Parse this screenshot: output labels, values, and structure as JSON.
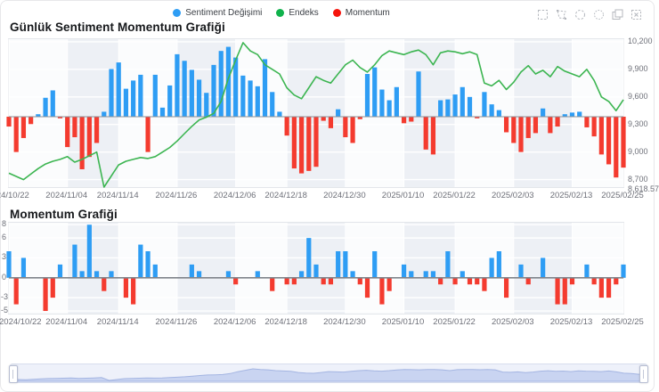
{
  "header": {
    "legend": [
      {
        "label": "Sentiment Değişimi",
        "color": "#2e9df4"
      },
      {
        "label": "Endeks",
        "color": "#10b24c"
      },
      {
        "label": "Momentum",
        "color": "#f5140c"
      }
    ],
    "toolbox_icons": [
      "brush-rect-icon",
      "brush-polygon-icon",
      "brush-keep-icon",
      "brush-clear-icon",
      "data-view-icon",
      "deselect-icon"
    ]
  },
  "colors": {
    "bar_positive": "#2e9df4",
    "bar_negative": "#f43b2f",
    "index_line": "#3cb551",
    "grid_line": "#ffffff",
    "band_light": "#fbfcfd",
    "band_dark": "#edf0f5",
    "zero_line": "#8d9299",
    "datazoom_fill": "#c9d4f1",
    "datazoom_stroke": "#a4b5e2"
  },
  "chart_data": [
    {
      "type": "bar+line",
      "title": "Günlük Sentiment Momentum Grafiği",
      "x_tick_labels": [
        "2024/10/22",
        "2024/11/04",
        "2024/11/14",
        "2024/11/26",
        "2024/12/06",
        "2024/12/18",
        "2024/12/30",
        "2025/01/10",
        "2025/01/22",
        "2025/02/03",
        "2025/02/13",
        "2025/02/25"
      ],
      "y_axis_right": {
        "ticks": [
          {
            "label": "10,200",
            "value": 10200
          },
          {
            "label": "9,900",
            "value": 9900
          },
          {
            "label": "9,600",
            "value": 9600
          },
          {
            "label": "9,300",
            "value": 9300
          },
          {
            "label": "9,000",
            "value": 9000
          },
          {
            "label": "8,700",
            "value": 8700
          }
        ],
        "min_label": {
          "label": "8,618.57",
          "value": 8618.57
        },
        "range": [
          8618.57,
          10228
        ]
      },
      "bar_axis_range": [
        -8.57,
        9.43
      ],
      "series": [
        {
          "name": "Sentiment Değişimi",
          "type": "bar",
          "values": [
            -1.2,
            -4.3,
            -2.6,
            -0.9,
            0.3,
            2.3,
            3.2,
            -0.2,
            -3.7,
            -2.5,
            -6.4,
            -4.9,
            -3.2,
            0.6,
            5.8,
            6.6,
            3.4,
            4.4,
            5.1,
            -4.3,
            5.1,
            1.1,
            3.8,
            7.6,
            6.8,
            5.7,
            4.5,
            2.9,
            6.3,
            8.0,
            8.5,
            7.2,
            5.0,
            4.4,
            3.7,
            7.0,
            3.0,
            0.6,
            -2.3,
            -6.3,
            -6.9,
            -6.6,
            -6.1,
            -0.5,
            -1.4,
            0.9,
            -2.5,
            -3.2,
            -0.3,
            5.2,
            6.0,
            3.3,
            2.0,
            3.6,
            -0.8,
            -0.6,
            5.5,
            -4.0,
            -4.6,
            2.0,
            2.1,
            2.7,
            3.6,
            2.4,
            -0.2,
            3.0,
            1.5,
            0.8,
            -1.9,
            -3.2,
            -4.3,
            -2.6,
            -2.0,
            1.0,
            -2.0,
            -1.2,
            0.3,
            0.5,
            0.6,
            -1.3,
            -2.4,
            -4.6,
            -5.8,
            -7.4,
            -6.2
          ]
        },
        {
          "name": "Endeks",
          "type": "line",
          "values": [
            8770,
            8735,
            8700,
            8760,
            8820,
            8870,
            8900,
            8920,
            8950,
            8890,
            8920,
            8960,
            9000,
            8618.57,
            8740,
            8860,
            8900,
            8920,
            8940,
            8930,
            8950,
            9000,
            9050,
            9120,
            9200,
            9280,
            9350,
            9380,
            9420,
            9550,
            9800,
            10000,
            10190,
            10100,
            10060,
            9950,
            9900,
            9850,
            9700,
            9620,
            9580,
            9700,
            9820,
            9780,
            9750,
            9850,
            9950,
            10000,
            9920,
            9870,
            9950,
            10050,
            10100,
            10080,
            10060,
            10090,
            10110,
            10060,
            9950,
            10080,
            10100,
            10090,
            10070,
            10090,
            10060,
            9750,
            9720,
            9780,
            9680,
            9760,
            9870,
            9940,
            9850,
            9890,
            9820,
            9930,
            9880,
            9850,
            9820,
            9900,
            9780,
            9600,
            9550,
            9450,
            9570
          ]
        }
      ]
    },
    {
      "type": "bar",
      "title": "Momentum Grafiği",
      "x_tick_labels": [
        "2024/10/22",
        "2024/11/04",
        "2024/11/14",
        "2024/11/26",
        "2024/12/06",
        "2024/12/18",
        "2024/12/30",
        "2025/01/10",
        "2025/01/22",
        "2025/02/03",
        "2025/02/13",
        "2025/02/25"
      ],
      "y_axis_left": {
        "ticks": [
          {
            "label": "8",
            "value": 8
          },
          {
            "label": "6",
            "value": 6
          },
          {
            "label": "3",
            "value": 3
          },
          {
            "label": "0",
            "value": 0
          },
          {
            "label": "-3",
            "value": -3
          },
          {
            "label": "-5",
            "value": -5
          }
        ],
        "range": [
          -5.4,
          8.3
        ]
      },
      "series": [
        {
          "name": "Momentum",
          "type": "bar",
          "values": [
            4,
            -4,
            3,
            0,
            0,
            -5,
            -3,
            2,
            0,
            5,
            1,
            8,
            1,
            -2,
            1,
            0,
            -3,
            -4,
            5,
            4,
            2,
            0,
            0,
            0,
            0,
            2,
            1,
            0,
            0,
            0,
            1,
            -1,
            0,
            0,
            1,
            0,
            -2,
            0,
            -1,
            -1,
            1,
            6,
            2,
            -1,
            -1,
            4,
            4,
            1,
            -1,
            -3,
            4,
            -4,
            -2,
            0,
            2,
            1,
            0,
            1,
            1,
            -1,
            4,
            -1,
            1,
            -1,
            -1,
            -2,
            3,
            4,
            -3,
            0,
            2,
            -1,
            0,
            3,
            0,
            -4,
            -4,
            -1,
            0,
            2,
            -1,
            -3,
            -3,
            -1,
            2
          ]
        }
      ]
    }
  ],
  "datazoom": {
    "shadow_series": "Endeks"
  }
}
